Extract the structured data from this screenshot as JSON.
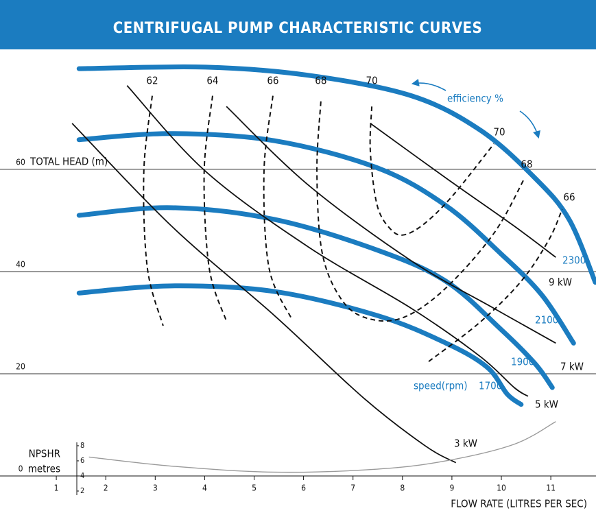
{
  "chart_data": {
    "type": "line",
    "title": "CENTRIFUGAL PUMP CHARACTERISTIC CURVES",
    "y_label": "TOTAL HEAD (m)",
    "x_label": "FLOW RATE (LITRES PER SEC)",
    "annotation": "efficiency %",
    "speed_label": "speed(rpm)",
    "y2_label": "metres",
    "xlim": [
      0,
      11.9
    ],
    "xticks": [
      1,
      2,
      3,
      4,
      5,
      6,
      7,
      8,
      9,
      10,
      11
    ],
    "ylim": [
      -5.9,
      82
    ],
    "yticks": [
      0,
      20,
      40,
      60
    ],
    "y2lim": [
      0,
      59.5
    ],
    "y2ticks": [
      2,
      4,
      6,
      8
    ],
    "grid": true,
    "series": [
      {
        "name": "2300",
        "style": "speed",
        "color": "#1b7cc0",
        "x": [
          1.46,
          4.02,
          6.1,
          8.18,
          9.57,
          10.68,
          11.37,
          11.9
        ],
        "values": [
          79.7,
          80,
          78.4,
          74.4,
          67.7,
          58.3,
          50.2,
          37.9
        ]
      },
      {
        "name": "2100",
        "style": "speed",
        "color": "#1b7cc0",
        "x": [
          1.46,
          3.33,
          5.41,
          7.49,
          8.88,
          9.99,
          10.82,
          11.46
        ],
        "values": [
          65.8,
          67,
          65.6,
          60.3,
          52.9,
          43.5,
          35.4,
          26.0
        ]
      },
      {
        "name": "1900",
        "style": "speed",
        "color": "#1b7cc0",
        "x": [
          1.46,
          3.33,
          5.41,
          7.49,
          8.88,
          9.99,
          10.68,
          11.03
        ],
        "values": [
          51,
          52.5,
          50.2,
          44.2,
          38.1,
          28.7,
          22,
          17.3
        ]
      },
      {
        "name": "1700",
        "style": "speed",
        "color": "#1b7cc0",
        "x": [
          1.46,
          3.33,
          5.41,
          7.49,
          8.88,
          9.71,
          10.12,
          10.4
        ],
        "values": [
          35.8,
          37.2,
          36.1,
          31.4,
          26,
          21.3,
          16,
          14
        ]
      },
      {
        "name": "3 kW",
        "style": "power",
        "color": "#111111",
        "x": [
          1.32,
          3.33,
          5.41,
          7.21,
          8.46,
          9.08
        ],
        "values": [
          69,
          48.9,
          31.4,
          15.3,
          5.9,
          2.6
        ]
      },
      {
        "name": "5 kW",
        "style": "power",
        "color": "#111111",
        "x": [
          2.43,
          4.02,
          6.1,
          8.18,
          9.57,
          10.26,
          10.54
        ],
        "values": [
          76.4,
          59.6,
          44.8,
          32.8,
          23.4,
          17.3,
          15.6
        ]
      },
      {
        "name": "7 kW",
        "style": "power",
        "color": "#111111",
        "x": [
          4.44,
          6.1,
          8.18,
          9.85,
          11.1
        ],
        "values": [
          72.3,
          56.9,
          42.1,
          32.8,
          26
        ]
      },
      {
        "name": "9 kW",
        "style": "power",
        "color": "#111111",
        "x": [
          7.35,
          8.88,
          10.26,
          11.1
        ],
        "values": [
          69,
          58.3,
          48.9,
          42.8
        ]
      },
      {
        "name": "62",
        "style": "efficiency",
        "color": "#111111",
        "x": [
          2.94,
          2.77,
          2.84,
          3.16
        ],
        "values": [
          74.4,
          59.6,
          40.8,
          29.4
        ]
      },
      {
        "name": "64",
        "style": "efficiency",
        "color": "#111111",
        "x": [
          4.16,
          3.99,
          4.09,
          4.44
        ],
        "values": [
          74.4,
          59.6,
          40.8,
          30.3
        ]
      },
      {
        "name": "66",
        "style": "efficiency",
        "color": "#111111",
        "x": [
          5.38,
          5.2,
          5.3,
          5.76
        ],
        "values": [
          74.4,
          59.6,
          40.8,
          30.7
        ]
      },
      {
        "name": "68",
        "end_label": "68",
        "style": "efficiency",
        "color": "#111111",
        "x": [
          6.35,
          6.27,
          6.38,
          6.8,
          7.35,
          8.04,
          8.88,
          9.85,
          10.47
        ],
        "values": [
          73.3,
          59.6,
          43.5,
          34.1,
          30.7,
          31.1,
          36.8,
          47.5,
          58.3
        ]
      },
      {
        "name": "70",
        "end_label": "70",
        "style": "efficiency",
        "color": "#111111",
        "x": [
          7.38,
          7.35,
          7.49,
          7.77,
          8.04,
          8.46,
          9.02,
          9.85
        ],
        "values": [
          72.3,
          63.6,
          52.9,
          48.2,
          47.2,
          49.5,
          54.9,
          65.0
        ]
      },
      {
        "name": "66",
        "style": "efficiency",
        "color": "#111111",
        "x": [
          8.53,
          9.57,
          10.4,
          10.96,
          11.23
        ],
        "values": [
          22.4,
          30.1,
          38.1,
          46.2,
          52.2
        ]
      },
      {
        "name": "NPSHR",
        "style": "npshr",
        "axis": "y2",
        "color": "#9a9a9a",
        "x": [
          1.66,
          3.33,
          5.41,
          7.49,
          8.88,
          10.26,
          11.1
        ],
        "values": [
          6.5,
          5.3,
          4.5,
          4.9,
          6.0,
          8.2,
          11.2
        ]
      }
    ]
  }
}
